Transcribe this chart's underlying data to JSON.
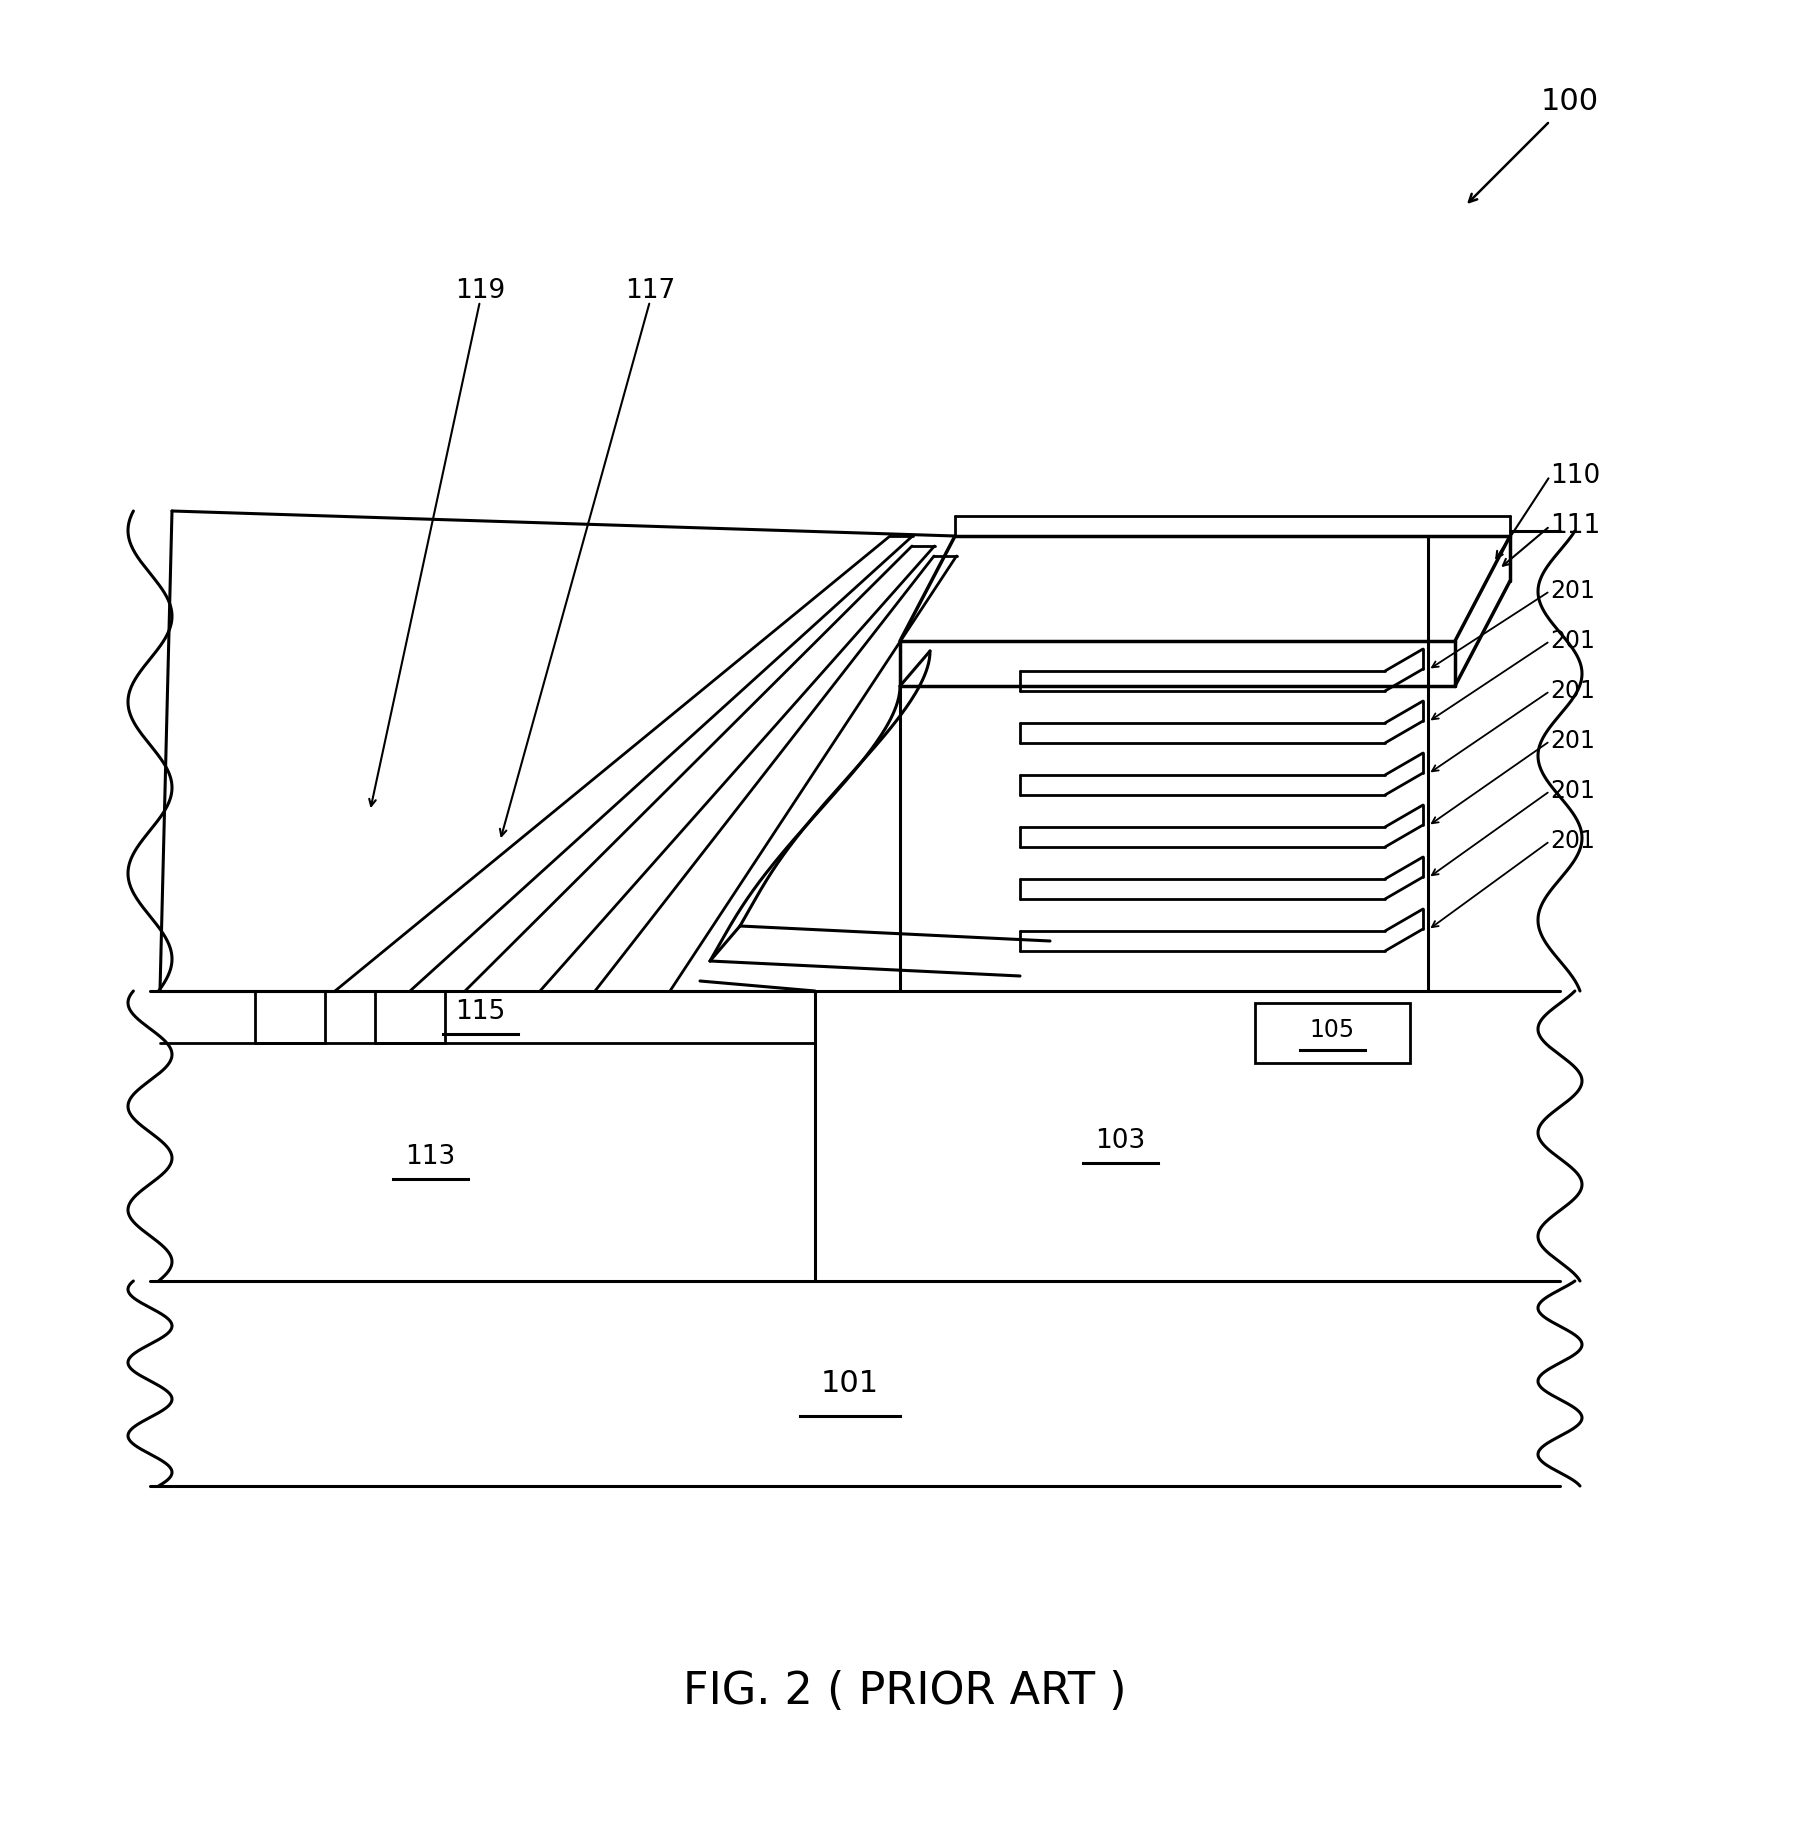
{
  "bg_color": "#ffffff",
  "title": "FIG. 2 ( PRIOR ART )",
  "title_fontsize": 32,
  "label_100": "100",
  "label_110": "110",
  "label_111": "111",
  "label_113": "113",
  "label_115": "115",
  "label_103": "103",
  "label_105": "105",
  "label_117": "117",
  "label_119": "119",
  "label_201": "201",
  "label_101": "101",
  "fig_width": 18.11,
  "fig_height": 18.41,
  "dpi": 100,
  "n_fingers": 6,
  "n_strips": 3
}
